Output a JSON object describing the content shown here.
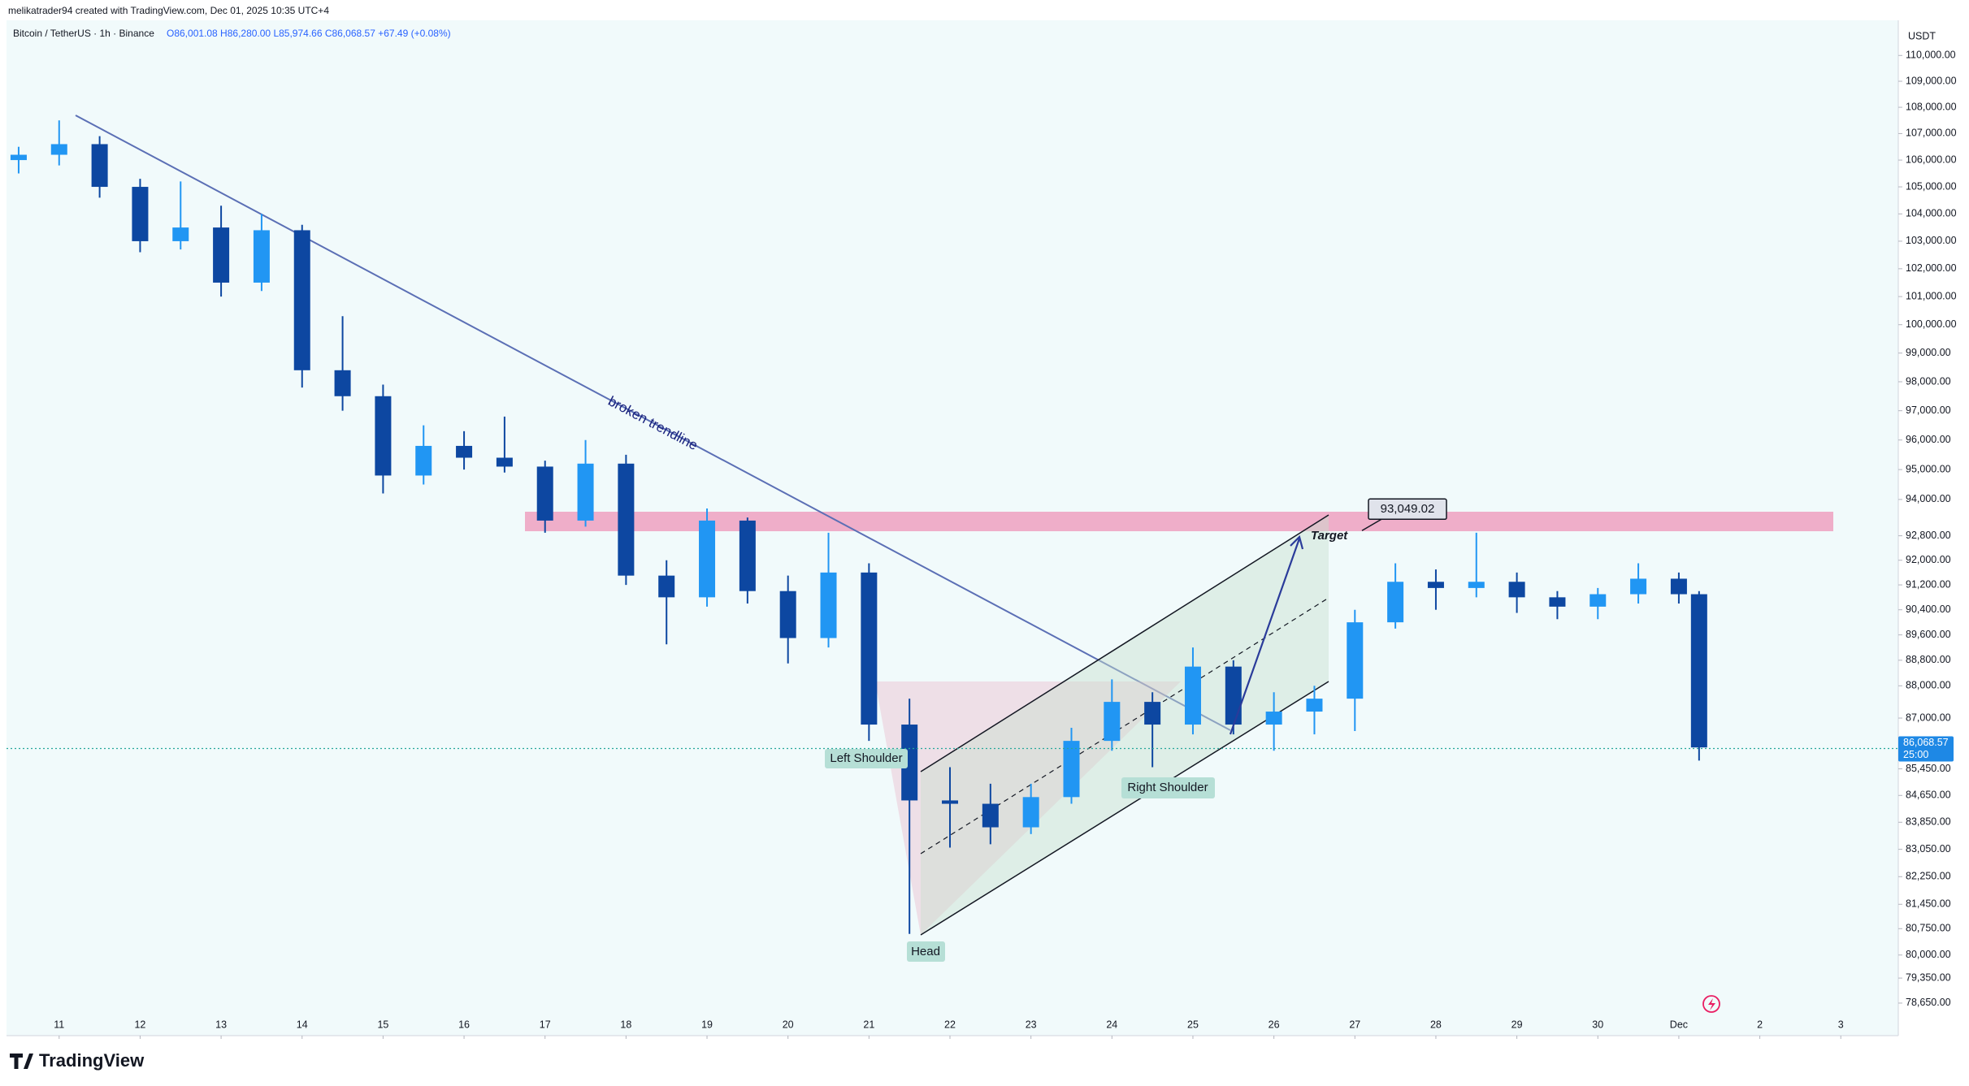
{
  "chart_data": {
    "type": "candlestick",
    "credit": "melikatrader94 created with TradingView.com, Dec 01, 2025 10:35 UTC+4",
    "title": "Bitcoin / TetherUS · 1h · Binance",
    "readout": "O86,001.08 H86,280.00 L85,974.66 C86,068.57 +67.49 (+0.08%)",
    "y_unit": "USDT",
    "brand": "TradingView",
    "x": [
      10.5,
      11,
      11.5,
      12,
      12.5,
      13,
      13.5,
      14,
      14.5,
      15,
      15.5,
      16,
      16.5,
      17,
      17.5,
      18,
      18.5,
      19,
      19.5,
      20,
      20.5,
      21,
      21.5,
      22,
      22.5,
      23,
      23.5,
      24,
      24.5,
      25,
      25.5,
      26,
      26.5,
      27,
      27.5,
      28,
      28.5,
      29,
      29.5,
      30,
      30.5,
      31,
      31.25
    ],
    "open": [
      106000,
      106200,
      106600,
      105000,
      103000,
      103500,
      101500,
      103400,
      98400,
      97500,
      94800,
      95800,
      95400,
      95100,
      93300,
      95200,
      91500,
      90800,
      93300,
      91000,
      89500,
      91600,
      86800,
      84500,
      84400,
      83700,
      84600,
      86300,
      87500,
      86800,
      88600,
      86800,
      87200,
      87600,
      90000,
      91300,
      91100,
      91300,
      90800,
      90500,
      90900,
      91400,
      90900
    ],
    "high": [
      106500,
      107500,
      106900,
      105300,
      105200,
      104300,
      104000,
      103600,
      100300,
      97900,
      96500,
      96300,
      96800,
      95300,
      96000,
      95500,
      92000,
      93700,
      93400,
      91500,
      92900,
      91900,
      87600,
      85500,
      85000,
      85000,
      86700,
      88200,
      87800,
      89200,
      88800,
      87800,
      88000,
      90400,
      91900,
      91700,
      92900,
      91600,
      91000,
      91100,
      91900,
      91600,
      91000
    ],
    "low": [
      105500,
      105800,
      104600,
      102600,
      102700,
      101000,
      101200,
      97800,
      97000,
      94200,
      94500,
      95000,
      94900,
      92900,
      93100,
      91200,
      89300,
      90500,
      90600,
      88700,
      89200,
      86300,
      80600,
      83100,
      83200,
      83500,
      84400,
      86000,
      85500,
      86500,
      86500,
      86000,
      86500,
      86600,
      89800,
      90400,
      90800,
      90300,
      90100,
      90100,
      90600,
      90600,
      85700
    ],
    "close": [
      106200,
      106600,
      105000,
      103000,
      103500,
      101500,
      103400,
      98400,
      97500,
      94800,
      95800,
      95400,
      95100,
      93300,
      95200,
      91500,
      90800,
      93300,
      91000,
      89500,
      91600,
      86800,
      84500,
      84400,
      83700,
      84600,
      86300,
      87500,
      86800,
      88600,
      86800,
      87200,
      87600,
      90000,
      91300,
      91100,
      91300,
      90800,
      90500,
      90900,
      91400,
      90900,
      86100
    ],
    "up_color": "#2196f3",
    "down_color": "#0d47a1",
    "xlim": [
      10.35,
      33.68
    ],
    "xticks": [
      11,
      12,
      13,
      14,
      15,
      16,
      17,
      18,
      19,
      20,
      21,
      22,
      23,
      24,
      25,
      26,
      27,
      28,
      29,
      30,
      {
        "value": 31,
        "label": "Dec"
      },
      {
        "value": 32,
        "label": "2"
      },
      {
        "value": 33,
        "label": "3"
      }
    ],
    "ylim": [
      78265,
      111185
    ],
    "log_scale": true,
    "grid": false,
    "yticks": [
      {
        "value": 110000,
        "label": "110,000.00"
      },
      {
        "value": 109000,
        "label": "109,000.00"
      },
      {
        "value": 108000,
        "label": "108,000.00"
      },
      {
        "value": 107000,
        "label": "107,000.00"
      },
      {
        "value": 106000,
        "label": "106,000.00"
      },
      {
        "value": 105000,
        "label": "105,000.00"
      },
      {
        "value": 104000,
        "label": "104,000.00"
      },
      {
        "value": 103000,
        "label": "103,000.00"
      },
      {
        "value": 102000,
        "label": "102,000.00"
      },
      {
        "value": 101000,
        "label": "101,000.00"
      },
      {
        "value": 100000,
        "label": "100,000.00"
      },
      {
        "value": 99000,
        "label": "99,000.00"
      },
      {
        "value": 98000,
        "label": "98,000.00"
      },
      {
        "value": 97000,
        "label": "97,000.00"
      },
      {
        "value": 96000,
        "label": "96,000.00"
      },
      {
        "value": 95000,
        "label": "95,000.00"
      },
      {
        "value": 94000,
        "label": "94,000.00"
      },
      {
        "value": 92800,
        "label": "92,800.00"
      },
      {
        "value": 92000,
        "label": "92,000.00"
      },
      {
        "value": 91200,
        "label": "91,200.00"
      },
      {
        "value": 90400,
        "label": "90,400.00"
      },
      {
        "value": 89600,
        "label": "89,600.00"
      },
      {
        "value": 88800,
        "label": "88,800.00"
      },
      {
        "value": 88000,
        "label": "88,000.00"
      },
      {
        "value": 87000,
        "label": "87,000.00"
      },
      {
        "value": 85450,
        "label": "85,450.00"
      },
      {
        "value": 84650,
        "label": "84,650.00"
      },
      {
        "value": 83850,
        "label": "83,850.00"
      },
      {
        "value": 83050,
        "label": "83,050.00"
      },
      {
        "value": 82250,
        "label": "82,250.00"
      },
      {
        "value": 81450,
        "label": "81,450.00"
      },
      {
        "value": 80750,
        "label": "80,750.00"
      },
      {
        "value": 80000,
        "label": "80,000.00"
      },
      {
        "value": 79350,
        "label": "79,350.00"
      },
      {
        "value": 78650,
        "label": "78,650.00"
      }
    ],
    "last_price": {
      "value": 86068.57,
      "label": "86,068.57"
    },
    "countdown": "25:00",
    "annotations": {
      "trendline": "broken trendline",
      "left_shoulder": "Left Shoulder",
      "head": "Head",
      "right_shoulder": "Right Shoulder",
      "target": "Target",
      "target_price": {
        "value": 93049.02,
        "label": "93,049.02"
      }
    }
  }
}
